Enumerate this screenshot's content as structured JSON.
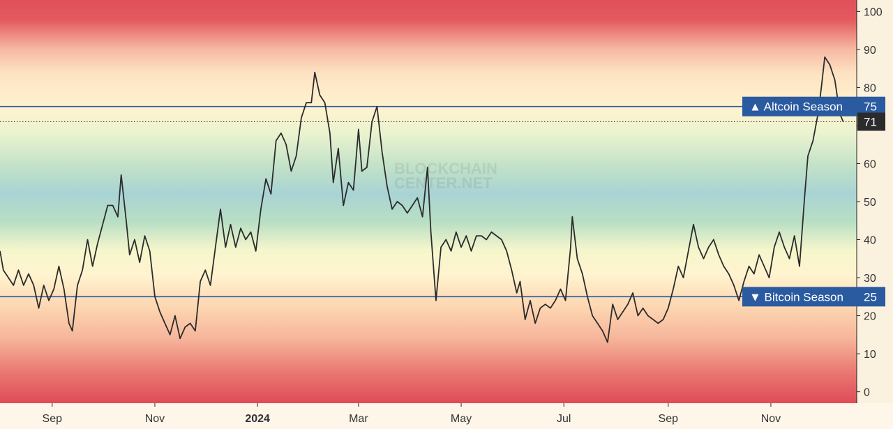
{
  "watermark": [
    "BLOCKCHAIN",
    "CENTER.NET"
  ],
  "chart_data": {
    "type": "line",
    "title": "",
    "xlabel": "",
    "ylabel": "",
    "ylim": [
      -3,
      103
    ],
    "y_ticks": [
      0,
      10,
      20,
      30,
      40,
      50,
      60,
      70,
      80,
      90,
      100
    ],
    "x_tick_labels": [
      {
        "date": "2023-09-01",
        "label": "Sep",
        "bold": false
      },
      {
        "date": "2023-11-01",
        "label": "Nov",
        "bold": false
      },
      {
        "date": "2024-01-01",
        "label": "2024",
        "bold": true
      },
      {
        "date": "2024-03-01",
        "label": "Mar",
        "bold": false
      },
      {
        "date": "2024-05-01",
        "label": "May",
        "bold": false
      },
      {
        "date": "2024-07-01",
        "label": "Jul",
        "bold": false
      },
      {
        "date": "2024-09-01",
        "label": "Sep",
        "bold": false
      },
      {
        "date": "2024-11-01",
        "label": "Nov",
        "bold": false
      }
    ],
    "xlim": [
      "2023-08-01",
      "2024-12-22"
    ],
    "background": "vertical gradient: red at extremes (0 and 100), orange/yellow near 25 and 75, green/teal around 50",
    "line_color": "#2b2b2b",
    "series": [
      {
        "points": [
          [
            "2023-08-01",
            37
          ],
          [
            "2023-08-03",
            32
          ],
          [
            "2023-08-06",
            30
          ],
          [
            "2023-08-09",
            28
          ],
          [
            "2023-08-12",
            32
          ],
          [
            "2023-08-15",
            28
          ],
          [
            "2023-08-18",
            31
          ],
          [
            "2023-08-21",
            28
          ],
          [
            "2023-08-24",
            22
          ],
          [
            "2023-08-27",
            28
          ],
          [
            "2023-08-30",
            24
          ],
          [
            "2023-09-02",
            27
          ],
          [
            "2023-09-05",
            33
          ],
          [
            "2023-09-08",
            27
          ],
          [
            "2023-09-11",
            18
          ],
          [
            "2023-09-13",
            16
          ],
          [
            "2023-09-16",
            28
          ],
          [
            "2023-09-19",
            32
          ],
          [
            "2023-09-22",
            40
          ],
          [
            "2023-09-25",
            33
          ],
          [
            "2023-09-28",
            39
          ],
          [
            "2023-10-01",
            44
          ],
          [
            "2023-10-04",
            49
          ],
          [
            "2023-10-07",
            49
          ],
          [
            "2023-10-10",
            46
          ],
          [
            "2023-10-12",
            57
          ],
          [
            "2023-10-15",
            45
          ],
          [
            "2023-10-17",
            36
          ],
          [
            "2023-10-20",
            40
          ],
          [
            "2023-10-23",
            34
          ],
          [
            "2023-10-26",
            41
          ],
          [
            "2023-10-29",
            37
          ],
          [
            "2023-11-01",
            25
          ],
          [
            "2023-11-04",
            21
          ],
          [
            "2023-11-07",
            18
          ],
          [
            "2023-11-10",
            15
          ],
          [
            "2023-11-13",
            20
          ],
          [
            "2023-11-16",
            14
          ],
          [
            "2023-11-19",
            17
          ],
          [
            "2023-11-22",
            18
          ],
          [
            "2023-11-25",
            16
          ],
          [
            "2023-11-28",
            29
          ],
          [
            "2023-12-01",
            32
          ],
          [
            "2023-12-04",
            28
          ],
          [
            "2023-12-07",
            38
          ],
          [
            "2023-12-10",
            48
          ],
          [
            "2023-12-13",
            38
          ],
          [
            "2023-12-16",
            44
          ],
          [
            "2023-12-19",
            38
          ],
          [
            "2023-12-22",
            43
          ],
          [
            "2023-12-25",
            40
          ],
          [
            "2023-12-28",
            42
          ],
          [
            "2023-12-31",
            37
          ],
          [
            "2024-01-03",
            48
          ],
          [
            "2024-01-06",
            56
          ],
          [
            "2024-01-09",
            52
          ],
          [
            "2024-01-12",
            66
          ],
          [
            "2024-01-15",
            68
          ],
          [
            "2024-01-18",
            65
          ],
          [
            "2024-01-21",
            58
          ],
          [
            "2024-01-24",
            62
          ],
          [
            "2024-01-27",
            72
          ],
          [
            "2024-01-30",
            76
          ],
          [
            "2024-02-02",
            76
          ],
          [
            "2024-02-04",
            84
          ],
          [
            "2024-02-07",
            78
          ],
          [
            "2024-02-10",
            76
          ],
          [
            "2024-02-13",
            68
          ],
          [
            "2024-02-15",
            55
          ],
          [
            "2024-02-18",
            64
          ],
          [
            "2024-02-21",
            49
          ],
          [
            "2024-02-24",
            55
          ],
          [
            "2024-02-27",
            53
          ],
          [
            "2024-03-01",
            69
          ],
          [
            "2024-03-03",
            58
          ],
          [
            "2024-03-06",
            59
          ],
          [
            "2024-03-09",
            71
          ],
          [
            "2024-03-12",
            75
          ],
          [
            "2024-03-15",
            63
          ],
          [
            "2024-03-18",
            54
          ],
          [
            "2024-03-21",
            48
          ],
          [
            "2024-03-24",
            50
          ],
          [
            "2024-03-27",
            49
          ],
          [
            "2024-03-30",
            47
          ],
          [
            "2024-04-02",
            49
          ],
          [
            "2024-04-05",
            51
          ],
          [
            "2024-04-08",
            46
          ],
          [
            "2024-04-11",
            59
          ],
          [
            "2024-04-13",
            42
          ],
          [
            "2024-04-16",
            24
          ],
          [
            "2024-04-19",
            38
          ],
          [
            "2024-04-22",
            40
          ],
          [
            "2024-04-25",
            37
          ],
          [
            "2024-04-28",
            42
          ],
          [
            "2024-05-01",
            38
          ],
          [
            "2024-05-04",
            41
          ],
          [
            "2024-05-07",
            37
          ],
          [
            "2024-05-10",
            41
          ],
          [
            "2024-05-13",
            41
          ],
          [
            "2024-05-16",
            40
          ],
          [
            "2024-05-19",
            42
          ],
          [
            "2024-05-22",
            41
          ],
          [
            "2024-05-25",
            40
          ],
          [
            "2024-05-28",
            37
          ],
          [
            "2024-05-31",
            32
          ],
          [
            "2024-06-03",
            26
          ],
          [
            "2024-06-05",
            29
          ],
          [
            "2024-06-08",
            19
          ],
          [
            "2024-06-11",
            24
          ],
          [
            "2024-06-14",
            18
          ],
          [
            "2024-06-17",
            22
          ],
          [
            "2024-06-20",
            23
          ],
          [
            "2024-06-23",
            22
          ],
          [
            "2024-06-26",
            24
          ],
          [
            "2024-06-29",
            27
          ],
          [
            "2024-07-02",
            24
          ],
          [
            "2024-07-05",
            38
          ],
          [
            "2024-07-06",
            46
          ],
          [
            "2024-07-09",
            35
          ],
          [
            "2024-07-12",
            31
          ],
          [
            "2024-07-15",
            25
          ],
          [
            "2024-07-18",
            20
          ],
          [
            "2024-07-21",
            18
          ],
          [
            "2024-07-24",
            16
          ],
          [
            "2024-07-27",
            13
          ],
          [
            "2024-07-30",
            23
          ],
          [
            "2024-08-02",
            19
          ],
          [
            "2024-08-05",
            21
          ],
          [
            "2024-08-08",
            23
          ],
          [
            "2024-08-11",
            26
          ],
          [
            "2024-08-14",
            20
          ],
          [
            "2024-08-17",
            22
          ],
          [
            "2024-08-20",
            20
          ],
          [
            "2024-08-23",
            19
          ],
          [
            "2024-08-26",
            18
          ],
          [
            "2024-08-29",
            19
          ],
          [
            "2024-09-01",
            22
          ],
          [
            "2024-09-04",
            27
          ],
          [
            "2024-09-07",
            33
          ],
          [
            "2024-09-10",
            30
          ],
          [
            "2024-09-13",
            37
          ],
          [
            "2024-09-16",
            44
          ],
          [
            "2024-09-19",
            38
          ],
          [
            "2024-09-22",
            35
          ],
          [
            "2024-09-25",
            38
          ],
          [
            "2024-09-28",
            40
          ],
          [
            "2024-10-01",
            36
          ],
          [
            "2024-10-04",
            33
          ],
          [
            "2024-10-07",
            31
          ],
          [
            "2024-10-10",
            28
          ],
          [
            "2024-10-13",
            24
          ],
          [
            "2024-10-16",
            29
          ],
          [
            "2024-10-19",
            33
          ],
          [
            "2024-10-22",
            31
          ],
          [
            "2024-10-25",
            36
          ],
          [
            "2024-10-28",
            33
          ],
          [
            "2024-10-31",
            30
          ],
          [
            "2024-11-03",
            38
          ],
          [
            "2024-11-06",
            42
          ],
          [
            "2024-11-09",
            38
          ],
          [
            "2024-11-12",
            35
          ],
          [
            "2024-11-15",
            41
          ],
          [
            "2024-11-18",
            33
          ],
          [
            "2024-11-21",
            51
          ],
          [
            "2024-11-23",
            62
          ],
          [
            "2024-11-26",
            66
          ],
          [
            "2024-11-29",
            73
          ],
          [
            "2024-12-01",
            80
          ],
          [
            "2024-12-03",
            88
          ],
          [
            "2024-12-06",
            86
          ],
          [
            "2024-12-09",
            82
          ],
          [
            "2024-12-12",
            73
          ],
          [
            "2024-12-14",
            71
          ]
        ]
      }
    ],
    "reference_lines": [
      {
        "value": 75,
        "label": "Altcoin Season",
        "symbol": "▲",
        "style": "solid",
        "color": "#2a5aa0"
      },
      {
        "value": 25,
        "label": "Bitcoin Season",
        "symbol": "▼",
        "style": "solid",
        "color": "#2a5aa0"
      },
      {
        "value": 71,
        "label": "71",
        "style": "dotted",
        "color": "#3a3a3a",
        "current": true
      }
    ],
    "grid": false
  }
}
